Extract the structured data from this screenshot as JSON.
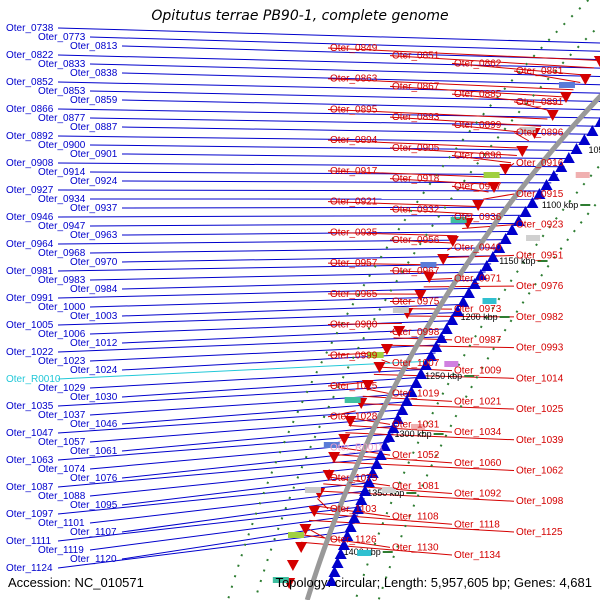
{
  "header": {
    "title": "Opitutus terrae PB90-1, complete genome"
  },
  "footer": {
    "accession": "Accession: NC_010571",
    "topology": "Topology: circular; Length: 5,957,605 bp; Genes: 4,681"
  },
  "colors": {
    "forward_strand": "#d40000",
    "reverse_strand": "#0000cc",
    "rna_label": "#22c8d8",
    "rrna_label": "#f0a0c8",
    "backbone": "#999999",
    "tick": "#2e7d32"
  },
  "scale_ticks": [
    "950 kbp",
    "1000 kbp",
    "1050 kbp",
    "1100 kbp",
    "1150 kbp",
    "1200 kbp",
    "1250 kbp",
    "1300 kbp",
    "1350 kbp",
    "1400 kbp"
  ],
  "left_labels": [
    "Oter_0738",
    "Oter_0773",
    "Oter_0813",
    "Oter_0822",
    "Oter_0833",
    "Oter_0838",
    "Oter_0852",
    "Oter_0853",
    "Oter_0859",
    "Oter_0866",
    "Oter_0877",
    "Oter_0887",
    "Oter_0892",
    "Oter_0900",
    "Oter_0901",
    "Oter_0908",
    "Oter_0914",
    "Oter_0924",
    "Oter_0927",
    "Oter_0934",
    "Oter_0937",
    "Oter_0946",
    "Oter_0947",
    "Oter_0963",
    "Oter_0964",
    "Oter_0968",
    "Oter_0970",
    "Oter_0981",
    "Oter_0983",
    "Oter_0984",
    "Oter_0991",
    "Oter_1000",
    "Oter_1003",
    "Oter_1005",
    "Oter_1006",
    "Oter_1012",
    "Oter_1022",
    "Oter_1023",
    "Oter_1024",
    "Oter_R0010",
    "Oter_1029",
    "Oter_1030",
    "Oter_1035",
    "Oter_1037",
    "Oter_1046",
    "Oter_1047",
    "Oter_1057",
    "Oter_1061",
    "Oter_1063",
    "Oter_1074",
    "Oter_1076",
    "Oter_1087",
    "Oter_1088",
    "Oter_1095",
    "Oter_1097",
    "Oter_1101",
    "Oter_1107",
    "Oter_1111",
    "Oter_1119",
    "Oter_1120",
    "Oter_1124"
  ],
  "right_labels": [
    "Oter_0849",
    "Oter_0851",
    "Oter_0862",
    "Oter_0861",
    "Oter_0863",
    "Oter_0867",
    "Oter_0885",
    "Oter_0891",
    "Oter_0895",
    "Oter_0893",
    "Oter_0899",
    "Oter_0896",
    "Oter_0894",
    "Oter_0905",
    "Oter_0898",
    "Oter_0916",
    "Oter_0917",
    "Oter_0918",
    "Oter_0907",
    "Oter_0915",
    "Oter_0921",
    "Oter_0932",
    "Oter_0936",
    "Oter_0923",
    "Oter_0935",
    "Oter_0956",
    "Oter_0940",
    "Oter_0951",
    "Oter_0957",
    "Oter_0967",
    "Oter_0971",
    "Oter_0976",
    "Oter_0965",
    "Oter_0975",
    "Oter_0973",
    "Oter_0982",
    "Oter_0980",
    "Oter_0998",
    "Oter_0987",
    "Oter_0993",
    "Oter_0999",
    "Oter_1007",
    "Oter_1009",
    "Oter_1014",
    "Oter_1015",
    "Oter_1019",
    "Oter_1021",
    "Oter_1025",
    "Oter_1028",
    "Oter_1031",
    "Oter_1034",
    "Oter_1039",
    "Oter_R0011",
    "Oter_1052",
    "Oter_1060",
    "Oter_1062",
    "Oter_1075",
    "Oter_1081",
    "Oter_1092",
    "Oter_1098",
    "Oter_1103",
    "Oter_1108",
    "Oter_1118",
    "Oter_1125",
    "Oter_1126",
    "Oter_1130",
    "Oter_1134"
  ]
}
